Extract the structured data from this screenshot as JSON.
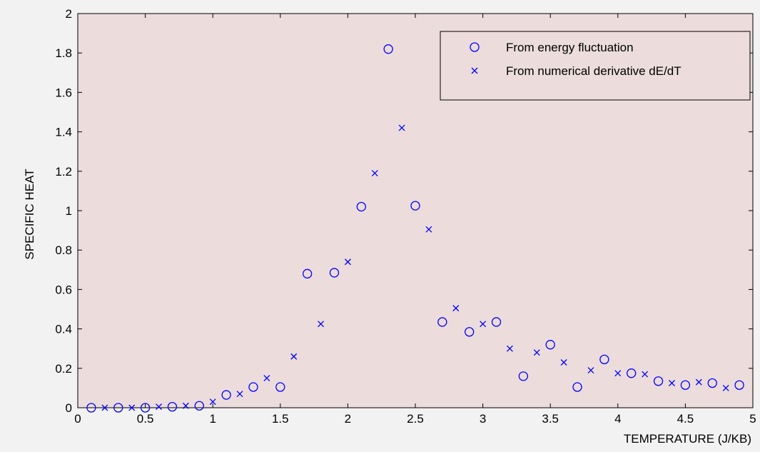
{
  "chart_data": {
    "type": "scatter",
    "xlabel": "TEMPERATURE (J/KB)",
    "ylabel": "SPECIFIC HEAT",
    "xlim": [
      0,
      5
    ],
    "ylim": [
      0,
      2
    ],
    "xticks": [
      "0",
      "0.5",
      "1",
      "1.5",
      "2",
      "2.5",
      "3",
      "3.5",
      "4",
      "4.5",
      "5"
    ],
    "yticks": [
      "0",
      "0.2",
      "0.4",
      "0.6",
      "0.8",
      "1",
      "1.2",
      "1.4",
      "1.6",
      "1.8",
      "2"
    ],
    "grid": false,
    "legend_position": "top-right",
    "plot_background": "#ecdcdc",
    "series_color": "#0000ff",
    "series": [
      {
        "name": "From energy fluctuation",
        "marker": "circle",
        "x": [
          0.1,
          0.3,
          0.5,
          0.7,
          0.9,
          1.1,
          1.3,
          1.5,
          1.7,
          1.9,
          2.1,
          2.3,
          2.5,
          2.7,
          2.9,
          3.1,
          3.3,
          3.5,
          3.7,
          3.9,
          4.1,
          4.3,
          4.5,
          4.7,
          4.9
        ],
        "y": [
          0.0,
          0.0,
          0.0,
          0.005,
          0.01,
          0.065,
          0.105,
          0.105,
          0.68,
          0.685,
          1.02,
          1.82,
          1.025,
          0.435,
          0.385,
          0.435,
          0.16,
          0.32,
          0.105,
          0.245,
          0.175,
          0.135,
          0.115,
          0.125,
          0.115
        ]
      },
      {
        "name": "From numerical derivative dE/dT",
        "marker": "x",
        "x": [
          0.2,
          0.4,
          0.6,
          0.8,
          1.0,
          1.2,
          1.4,
          1.6,
          1.8,
          2.0,
          2.2,
          2.4,
          2.6,
          2.8,
          3.0,
          3.2,
          3.4,
          3.6,
          3.8,
          4.0,
          4.2,
          4.4,
          4.6,
          4.8
        ],
        "y": [
          0.0,
          0.0,
          0.005,
          0.01,
          0.03,
          0.07,
          0.15,
          0.26,
          0.425,
          0.74,
          1.19,
          1.42,
          0.905,
          0.505,
          0.425,
          0.3,
          0.28,
          0.23,
          0.19,
          0.175,
          0.17,
          0.125,
          0.13,
          0.1
        ]
      }
    ]
  }
}
